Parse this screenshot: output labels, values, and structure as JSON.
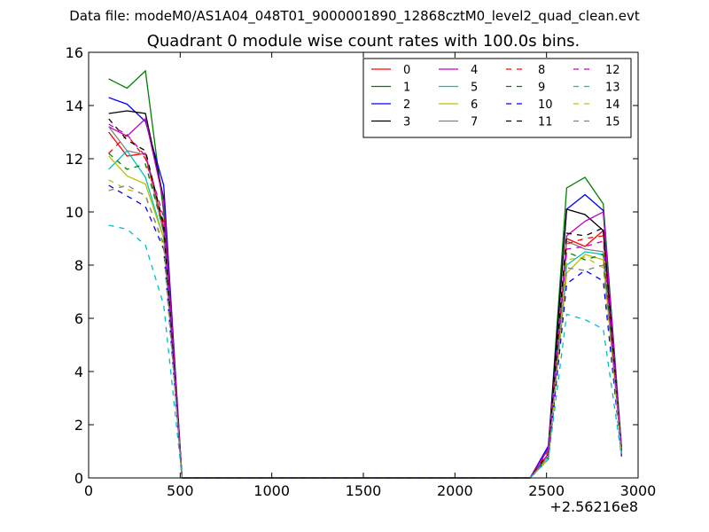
{
  "suptitle": "Data file: modeM0/AS1A04_048T01_9000001890_12868cztM0_level2_quad_clean.evt",
  "chart_data": {
    "type": "line",
    "title": "Quadrant 0 module wise count rates with 100.0s bins.",
    "xlabel": "",
    "ylabel": "",
    "xlim": [
      0,
      3000
    ],
    "ylim": [
      0,
      16
    ],
    "x_offset_label": "+2.56216e8",
    "x_ticks": [
      0,
      500,
      1000,
      1500,
      2000,
      2500,
      3000
    ],
    "x_tick_labels": [
      "0",
      "500",
      "1000",
      "1500",
      "2000",
      "2500",
      "3000"
    ],
    "y_ticks": [
      0,
      2,
      4,
      6,
      8,
      10,
      12,
      14,
      16
    ],
    "y_tick_labels": [
      "0",
      "2",
      "4",
      "6",
      "8",
      "10",
      "12",
      "14",
      "16"
    ],
    "grid": false,
    "legend_position": "top-right",
    "legend_columns": 4,
    "x": [
      110,
      210,
      310,
      410,
      510,
      610,
      710,
      810,
      910,
      1010,
      1110,
      1210,
      1310,
      1410,
      1510,
      1610,
      1710,
      1810,
      1910,
      2010,
      2110,
      2210,
      2310,
      2410,
      2510,
      2610,
      2710,
      2810,
      2910
    ],
    "series": [
      {
        "name": "0",
        "color": "#ff0000",
        "dash": "solid",
        "values": [
          13.0,
          12.1,
          12.2,
          9.4,
          0,
          0,
          0,
          0,
          0,
          0,
          0,
          0,
          0,
          0,
          0,
          0,
          0,
          0,
          0,
          0,
          0,
          0,
          0,
          0,
          0.9,
          9.0,
          8.7,
          9.3,
          1.0
        ]
      },
      {
        "name": "1",
        "color": "#008000",
        "dash": "solid",
        "values": [
          15.0,
          14.65,
          15.3,
          10.0,
          0,
          0,
          0,
          0,
          0,
          0,
          0,
          0,
          0,
          0,
          0,
          0,
          0,
          0,
          0,
          0,
          0,
          0,
          0,
          0,
          1.1,
          10.9,
          11.3,
          10.3,
          1.1
        ]
      },
      {
        "name": "2",
        "color": "#0000ff",
        "dash": "solid",
        "values": [
          14.3,
          14.05,
          13.4,
          11.0,
          0,
          0,
          0,
          0,
          0,
          0,
          0,
          0,
          0,
          0,
          0,
          0,
          0,
          0,
          0,
          0,
          0,
          0,
          0,
          0,
          1.2,
          10.1,
          10.65,
          10.05,
          1.1
        ]
      },
      {
        "name": "3",
        "color": "#000000",
        "dash": "solid",
        "values": [
          13.7,
          13.8,
          13.7,
          10.5,
          0,
          0,
          0,
          0,
          0,
          0,
          0,
          0,
          0,
          0,
          0,
          0,
          0,
          0,
          0,
          0,
          0,
          0,
          0,
          0,
          1.1,
          10.1,
          9.9,
          9.3,
          1.0
        ]
      },
      {
        "name": "4",
        "color": "#bf00bf",
        "dash": "solid",
        "values": [
          13.2,
          12.85,
          13.5,
          10.4,
          0,
          0,
          0,
          0,
          0,
          0,
          0,
          0,
          0,
          0,
          0,
          0,
          0,
          0,
          0,
          0,
          0,
          0,
          0,
          0,
          1.1,
          9.1,
          9.65,
          10.0,
          1.0
        ]
      },
      {
        "name": "5",
        "color": "#00bfbf",
        "dash": "solid",
        "values": [
          11.6,
          12.3,
          11.3,
          9.0,
          0,
          0,
          0,
          0,
          0,
          0,
          0,
          0,
          0,
          0,
          0,
          0,
          0,
          0,
          0,
          0,
          0,
          0,
          0,
          0,
          0.8,
          8.0,
          8.5,
          8.4,
          0.9
        ]
      },
      {
        "name": "6",
        "color": "#bfbf00",
        "dash": "solid",
        "values": [
          12.1,
          11.35,
          11.05,
          9.0,
          0,
          0,
          0,
          0,
          0,
          0,
          0,
          0,
          0,
          0,
          0,
          0,
          0,
          0,
          0,
          0,
          0,
          0,
          0,
          0,
          0.7,
          7.7,
          8.4,
          8.2,
          0.9
        ]
      },
      {
        "name": "7",
        "color": "#808080",
        "dash": "solid",
        "values": [
          13.2,
          12.3,
          12.15,
          9.2,
          0,
          0,
          0,
          0,
          0,
          0,
          0,
          0,
          0,
          0,
          0,
          0,
          0,
          0,
          0,
          0,
          0,
          0,
          0,
          0,
          0.9,
          8.9,
          8.6,
          8.5,
          1.0
        ]
      },
      {
        "name": "8",
        "color": "#ff0000",
        "dash": "dashed",
        "values": [
          12.2,
          12.9,
          12.0,
          9.6,
          0,
          0,
          0,
          0,
          0,
          0,
          0,
          0,
          0,
          0,
          0,
          0,
          0,
          0,
          0,
          0,
          0,
          0,
          0,
          0,
          1.0,
          8.8,
          9.0,
          9.1,
          1.0
        ]
      },
      {
        "name": "9",
        "color": "#008000",
        "dash": "dashed",
        "values": [
          12.2,
          11.6,
          11.8,
          9.3,
          0,
          0,
          0,
          0,
          0,
          0,
          0,
          0,
          0,
          0,
          0,
          0,
          0,
          0,
          0,
          0,
          0,
          0,
          0,
          0,
          0.8,
          8.5,
          8.2,
          8.4,
          0.9
        ]
      },
      {
        "name": "10",
        "color": "#0000ff",
        "dash": "dashed",
        "values": [
          11.0,
          10.6,
          10.2,
          8.6,
          0,
          0,
          0,
          0,
          0,
          0,
          0,
          0,
          0,
          0,
          0,
          0,
          0,
          0,
          0,
          0,
          0,
          0,
          0,
          0,
          0.7,
          7.3,
          7.8,
          7.4,
          0.8
        ]
      },
      {
        "name": "11",
        "color": "#000000",
        "dash": "dashed",
        "values": [
          13.5,
          12.7,
          12.3,
          9.5,
          0,
          0,
          0,
          0,
          0,
          0,
          0,
          0,
          0,
          0,
          0,
          0,
          0,
          0,
          0,
          0,
          0,
          0,
          0,
          0,
          0.9,
          9.2,
          9.1,
          9.4,
          1.0
        ]
      },
      {
        "name": "12",
        "color": "#bf00bf",
        "dash": "dashed",
        "values": [
          13.3,
          12.9,
          12.1,
          9.8,
          0,
          0,
          0,
          0,
          0,
          0,
          0,
          0,
          0,
          0,
          0,
          0,
          0,
          0,
          0,
          0,
          0,
          0,
          0,
          0,
          0.9,
          8.6,
          8.7,
          8.9,
          1.0
        ]
      },
      {
        "name": "13",
        "color": "#00bfbf",
        "dash": "dashed",
        "values": [
          9.5,
          9.35,
          8.75,
          6.5,
          0,
          0,
          0,
          0,
          0,
          0,
          0,
          0,
          0,
          0,
          0,
          0,
          0,
          0,
          0,
          0,
          0,
          0,
          0,
          0,
          0.7,
          6.15,
          5.95,
          5.6,
          0.8
        ]
      },
      {
        "name": "14",
        "color": "#bfbf00",
        "dash": "dashed",
        "values": [
          11.2,
          10.85,
          10.65,
          8.7,
          0,
          0,
          0,
          0,
          0,
          0,
          0,
          0,
          0,
          0,
          0,
          0,
          0,
          0,
          0,
          0,
          0,
          0,
          0,
          0,
          0.7,
          8.2,
          8.3,
          7.9,
          0.9
        ]
      },
      {
        "name": "15",
        "color": "#808080",
        "dash": "dashed",
        "values": [
          10.8,
          11.0,
          10.6,
          8.8,
          0,
          0,
          0,
          0,
          0,
          0,
          0,
          0,
          0,
          0,
          0,
          0,
          0,
          0,
          0,
          0,
          0,
          0,
          0,
          0,
          0.8,
          7.9,
          7.8,
          8.0,
          0.9
        ]
      }
    ]
  }
}
